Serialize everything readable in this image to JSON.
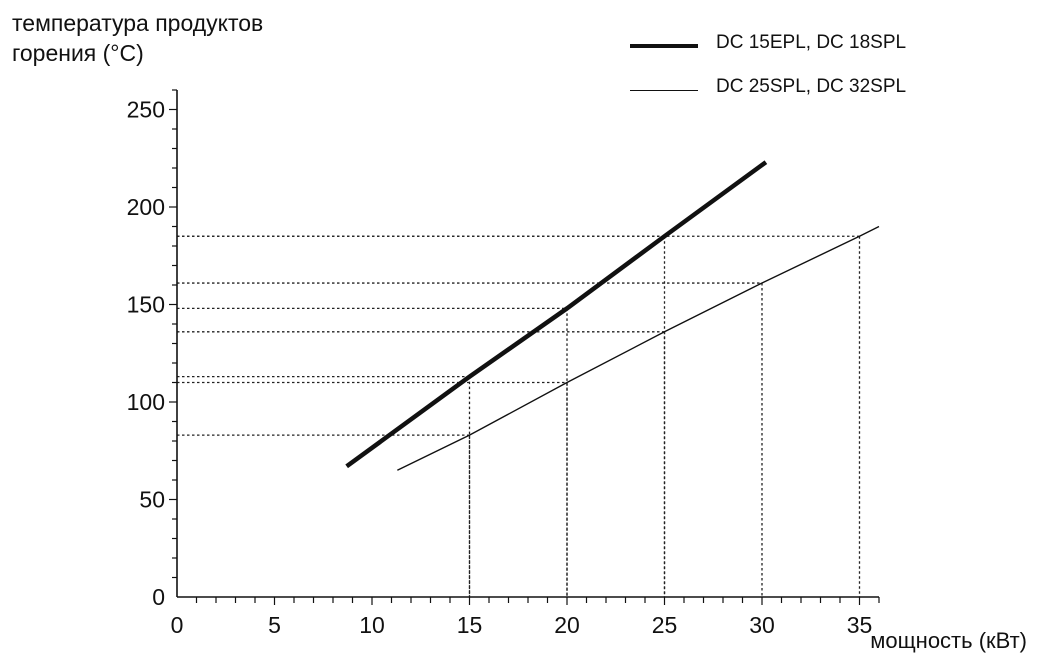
{
  "chart_data": {
    "type": "line",
    "ylabel_lines": [
      "температура продуктов",
      "горения (°C)"
    ],
    "xlabel": "мощность (кВт)",
    "xlim": [
      0,
      36
    ],
    "ylim": [
      0,
      260
    ],
    "xticks": [
      0,
      5,
      10,
      15,
      20,
      25,
      30,
      35
    ],
    "yticks": [
      0,
      50,
      100,
      150,
      200,
      250
    ],
    "grid": false,
    "legend_position": "top-right",
    "series": [
      {
        "name": "DC 15EPL, DC 18SPL",
        "style": "thick",
        "color": "#111111",
        "x": [
          8.7,
          15,
          20,
          25,
          30.2
        ],
        "y": [
          67,
          113,
          148,
          185,
          223
        ]
      },
      {
        "name": "DC 25SPL, DC 32SPL",
        "style": "thin",
        "color": "#111111",
        "x": [
          11.3,
          15,
          20,
          25,
          30,
          35,
          36
        ],
        "y": [
          65,
          83,
          110,
          136,
          161,
          185,
          190
        ]
      }
    ],
    "reference_lines": [
      {
        "x": 15,
        "y": 83
      },
      {
        "x": 15,
        "y": 113
      },
      {
        "x": 20,
        "y": 110
      },
      {
        "x": 20,
        "y": 148
      },
      {
        "x": 25,
        "y": 136
      },
      {
        "x": 25,
        "y": 185
      },
      {
        "x": 30,
        "y": 161
      },
      {
        "x": 35,
        "y": 185
      }
    ]
  }
}
